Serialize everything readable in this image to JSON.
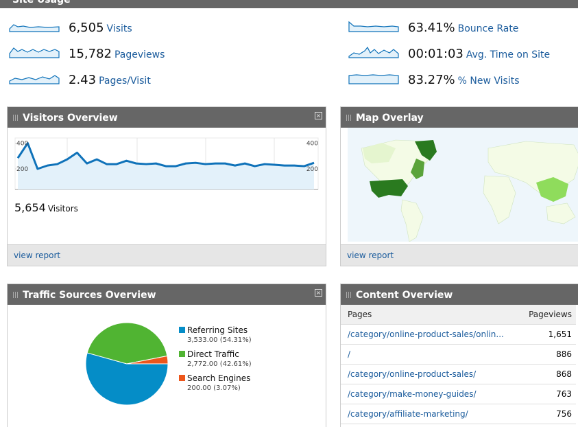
{
  "site_usage": {
    "title": "Site Usage",
    "metrics": [
      {
        "value": "6,505",
        "label": "Visits"
      },
      {
        "value": "15,782",
        "label": "Pageviews"
      },
      {
        "value": "2.43",
        "label": "Pages/Visit"
      },
      {
        "value": "63.41%",
        "label": "Bounce Rate"
      },
      {
        "value": "00:01:03",
        "label": "Avg. Time on Site"
      },
      {
        "value": "83.27%",
        "label": "% New Visits"
      }
    ]
  },
  "visitors_overview": {
    "title": "Visitors Overview",
    "chart": {
      "type": "line",
      "color": "#0f72b9",
      "values": [
        284,
        400,
        200,
        226,
        237,
        274,
        326,
        242,
        274,
        237,
        237,
        263,
        242,
        237,
        242,
        221,
        221,
        242,
        247,
        237,
        242,
        242,
        226,
        242,
        221,
        237,
        232,
        226,
        226,
        221,
        247
      ],
      "ylim": [
        40,
        440
      ],
      "yticks": [
        200,
        400
      ]
    },
    "total": "5,654",
    "total_label": "Visitors",
    "link": "view report"
  },
  "map_overlay": {
    "title": "Map Overlay",
    "link": "view report"
  },
  "traffic_sources": {
    "title": "Traffic Sources Overview",
    "chart": {
      "type": "pie",
      "series": [
        {
          "name": "Referring Sites",
          "value": 3533,
          "label": "3,533.00 (54.31%)",
          "color": "#058dc7"
        },
        {
          "name": "Direct Traffic",
          "value": 2772,
          "label": "2,772.00 (42.61%)",
          "color": "#50b432"
        },
        {
          "name": "Search Engines",
          "value": 200,
          "label": "200.00 (3.07%)",
          "color": "#ed561b"
        }
      ]
    }
  },
  "content_overview": {
    "title": "Content Overview",
    "table": {
      "header": [
        "Pages",
        "Pageviews"
      ],
      "rows": [
        [
          "/category/online-product-sales/onlin...",
          "1,651"
        ],
        [
          "/",
          "886"
        ],
        [
          "/category/online-product-sales/",
          "868"
        ],
        [
          "/category/make-money-guides/",
          "763"
        ],
        [
          "/category/affiliate-marketing/",
          "756"
        ]
      ]
    }
  }
}
